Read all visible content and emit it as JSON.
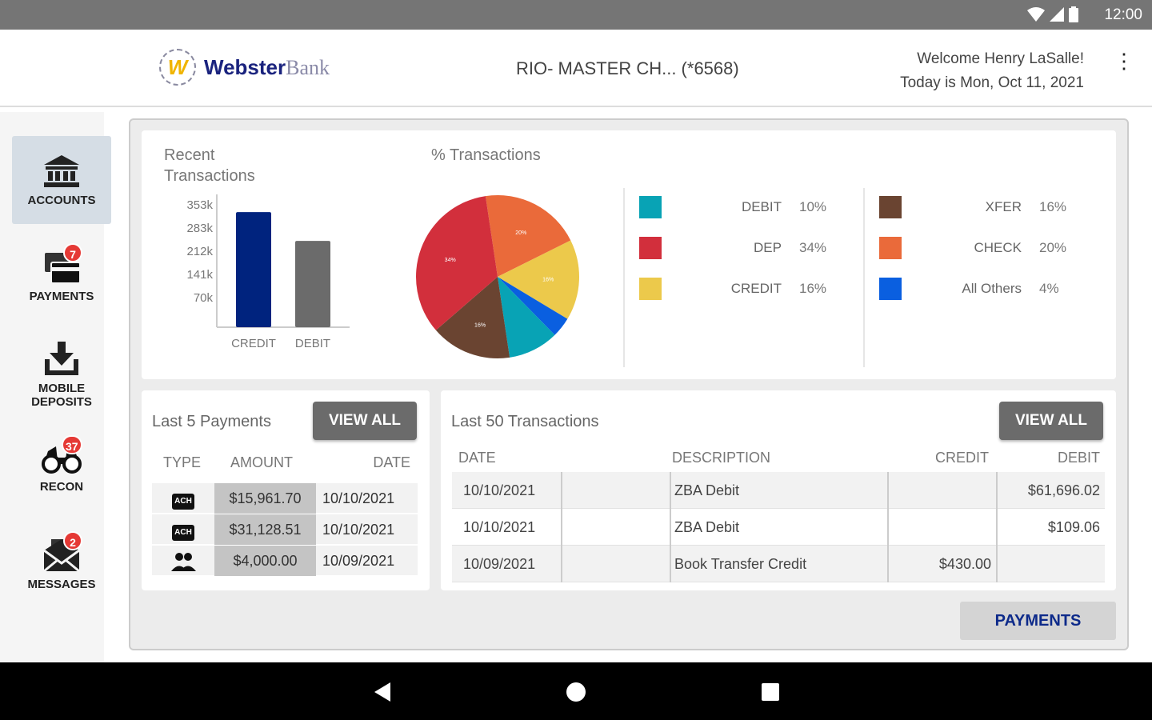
{
  "status_bar": {
    "time": "12:00"
  },
  "header": {
    "logo_bold": "Webster",
    "logo_light": "Bank",
    "account": "RIO- MASTER CH...  (*6568)",
    "welcome": "Welcome Henry LaSalle!",
    "date_line": "Today is Mon, Oct 11, 2021"
  },
  "sidebar": {
    "items": [
      {
        "label": "ACCOUNTS"
      },
      {
        "label": "PAYMENTS",
        "badge": "7"
      },
      {
        "label": "MOBILE DEPOSITS"
      },
      {
        "label": "RECON",
        "badge": "37"
      },
      {
        "label": "MESSAGES",
        "badge": "2"
      }
    ]
  },
  "chart_data": [
    {
      "type": "bar",
      "title": "Recent Transactions",
      "categories": [
        "CREDIT",
        "DEBIT"
      ],
      "values": [
        332000,
        249000
      ],
      "yticks": [
        "353k",
        "283k",
        "212k",
        "141k",
        "70k"
      ],
      "ylim": [
        0,
        353000
      ],
      "colors": [
        "#00237e",
        "#6b6b6b"
      ]
    },
    {
      "type": "pie",
      "title": "% Transactions",
      "slices": [
        {
          "label": "CHECK",
          "value": 20,
          "pct": "20%",
          "color": "#ea6a3a"
        },
        {
          "label": "CREDIT",
          "value": 16,
          "pct": "16%",
          "color": "#ecc94b"
        },
        {
          "label": "All Others",
          "value": 4,
          "pct": "4%",
          "color": "#0a5fe0"
        },
        {
          "label": "DEBIT",
          "value": 10,
          "pct": "10%",
          "color": "#08a3b5"
        },
        {
          "label": "XFER",
          "value": 16,
          "pct": "16%",
          "color": "#6a4431"
        },
        {
          "label": "DEP",
          "value": 34,
          "pct": "34%",
          "color": "#d22f3c"
        }
      ]
    }
  ],
  "payments": {
    "title": "Last 5 Payments",
    "view_all": "VIEW ALL",
    "headers": [
      "TYPE",
      "AMOUNT",
      "DATE"
    ],
    "rows": [
      {
        "type": "ACH",
        "amount": "$15,961.70",
        "date": "10/10/2021"
      },
      {
        "type": "ACH",
        "amount": "$31,128.51",
        "date": "10/10/2021"
      },
      {
        "type": "people",
        "amount": "$4,000.00",
        "date": "10/09/2021"
      }
    ]
  },
  "transactions": {
    "title": "Last 50 Transactions",
    "view_all": "VIEW ALL",
    "headers": [
      "DATE",
      "DESCRIPTION",
      "CREDIT",
      "DEBIT"
    ],
    "rows": [
      {
        "date": "10/10/2021",
        "description": "ZBA Debit",
        "credit": "",
        "debit": "$61,696.02"
      },
      {
        "date": "10/10/2021",
        "description": "ZBA Debit",
        "credit": "",
        "debit": "$109.06"
      },
      {
        "date": "10/09/2021",
        "description": "Book Transfer Credit",
        "credit": "$430.00",
        "debit": ""
      }
    ]
  },
  "payments_button": "PAYMENTS"
}
